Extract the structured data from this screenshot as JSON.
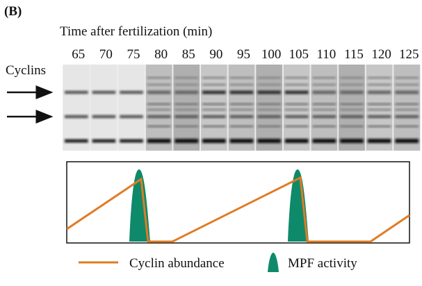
{
  "panel_label": "(B)",
  "gel": {
    "title": "Time after fertilization (min)",
    "lanes": [
      "65",
      "70",
      "75",
      "80",
      "85",
      "90",
      "95",
      "100",
      "105",
      "110",
      "115",
      "120",
      "125"
    ],
    "row_label": "Cyclins"
  },
  "legend": {
    "items": [
      "Cyclin abundance",
      "MPF activity"
    ]
  }
}
